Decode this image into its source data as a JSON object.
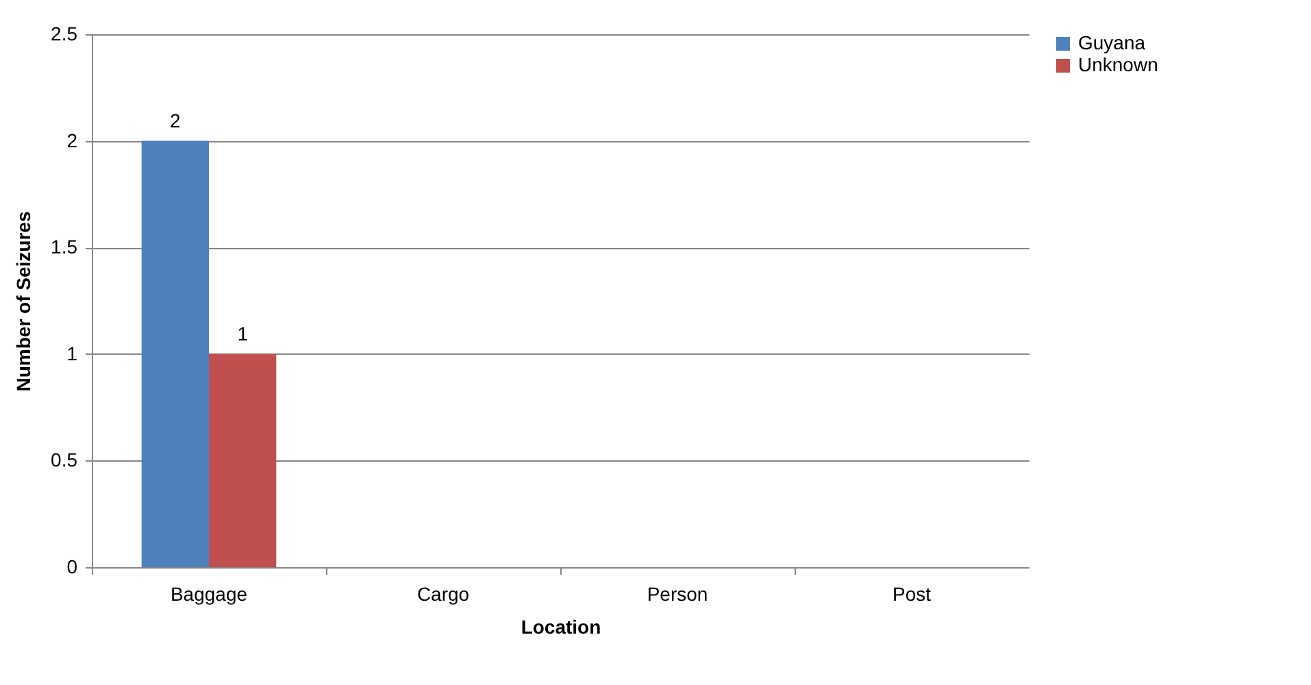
{
  "chart_data": {
    "type": "bar",
    "xlabel": "Location",
    "ylabel": "Number of Seizures",
    "categories": [
      "Baggage",
      "Cargo",
      "Person",
      "Post"
    ],
    "series": [
      {
        "name": "Guyana",
        "color": "#4f81bd",
        "values": [
          2,
          null,
          null,
          null
        ],
        "value_labels": [
          "2",
          null,
          null,
          null
        ]
      },
      {
        "name": "Unknown",
        "color": "#c0504d",
        "values": [
          1,
          null,
          null,
          null
        ],
        "value_labels": [
          "1",
          null,
          null,
          null
        ]
      }
    ],
    "ylim": [
      0,
      2.5
    ],
    "yticks": [
      0,
      0.5,
      1,
      1.5,
      2,
      2.5
    ],
    "grid": "y",
    "legend": "right"
  }
}
